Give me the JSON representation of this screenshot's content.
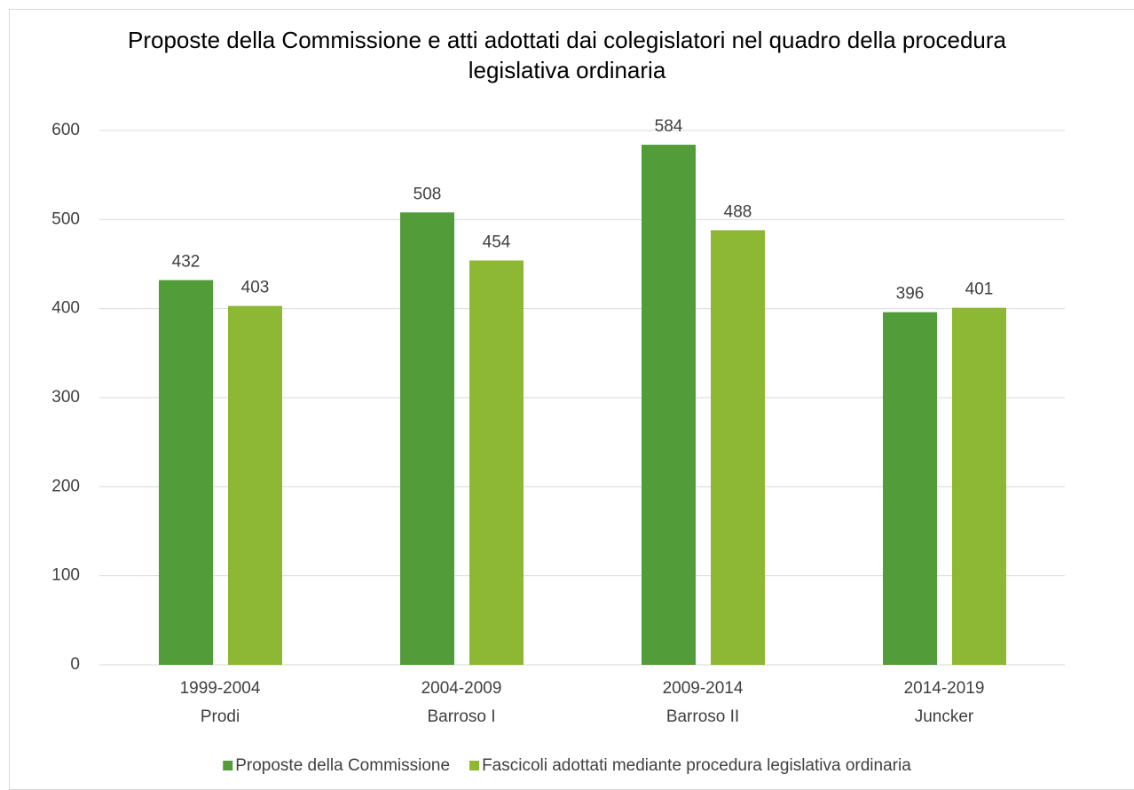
{
  "chart_data": {
    "type": "bar",
    "title": "Proposte della Commissione e atti adottati dai colegislatori nel quadro della procedura legislativa ordinaria",
    "categories": [
      [
        "1999-2004",
        "Prodi"
      ],
      [
        "2004-2009",
        "Barroso I"
      ],
      [
        "2009-2014",
        "Barroso II"
      ],
      [
        "2014-2019",
        "Juncker"
      ]
    ],
    "series": [
      {
        "name": "Proposte della Commissione",
        "color": "#529d3a",
        "values": [
          432,
          508,
          584,
          396
        ]
      },
      {
        "name": "Fascicoli adottati mediante procedura legislativa ordinaria",
        "color": "#8db833",
        "values": [
          403,
          454,
          488,
          401
        ]
      }
    ],
    "ylim": [
      0,
      600
    ],
    "yticks": [
      0,
      100,
      200,
      300,
      400,
      500,
      600
    ],
    "grid": true,
    "legend": "bottom"
  }
}
